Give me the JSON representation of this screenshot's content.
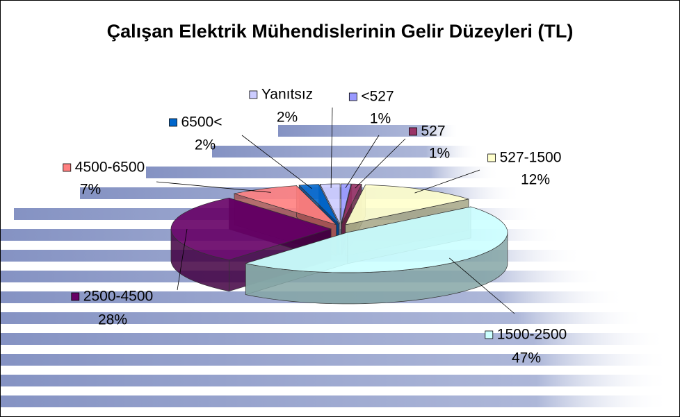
{
  "chart_data": {
    "type": "pie",
    "title": "Çalışan Elektrik Mühendislerinin Gelir Düzeyleri (TL)",
    "categories": [
      "<527",
      "527",
      "527-1500",
      "1500-2500",
      "2500-4500",
      "4500-6500",
      "6500<",
      "Yanıtsız"
    ],
    "values": [
      1,
      1,
      12,
      47,
      28,
      7,
      2,
      2
    ],
    "value_labels": [
      "1%",
      "1%",
      "12%",
      "47%",
      "28%",
      "7%",
      "2%",
      "2%"
    ],
    "colors": [
      "#9999ff",
      "#993366",
      "#ffffcc",
      "#ccffff",
      "#660066",
      "#ff8080",
      "#0066cc",
      "#ccccff"
    ]
  }
}
